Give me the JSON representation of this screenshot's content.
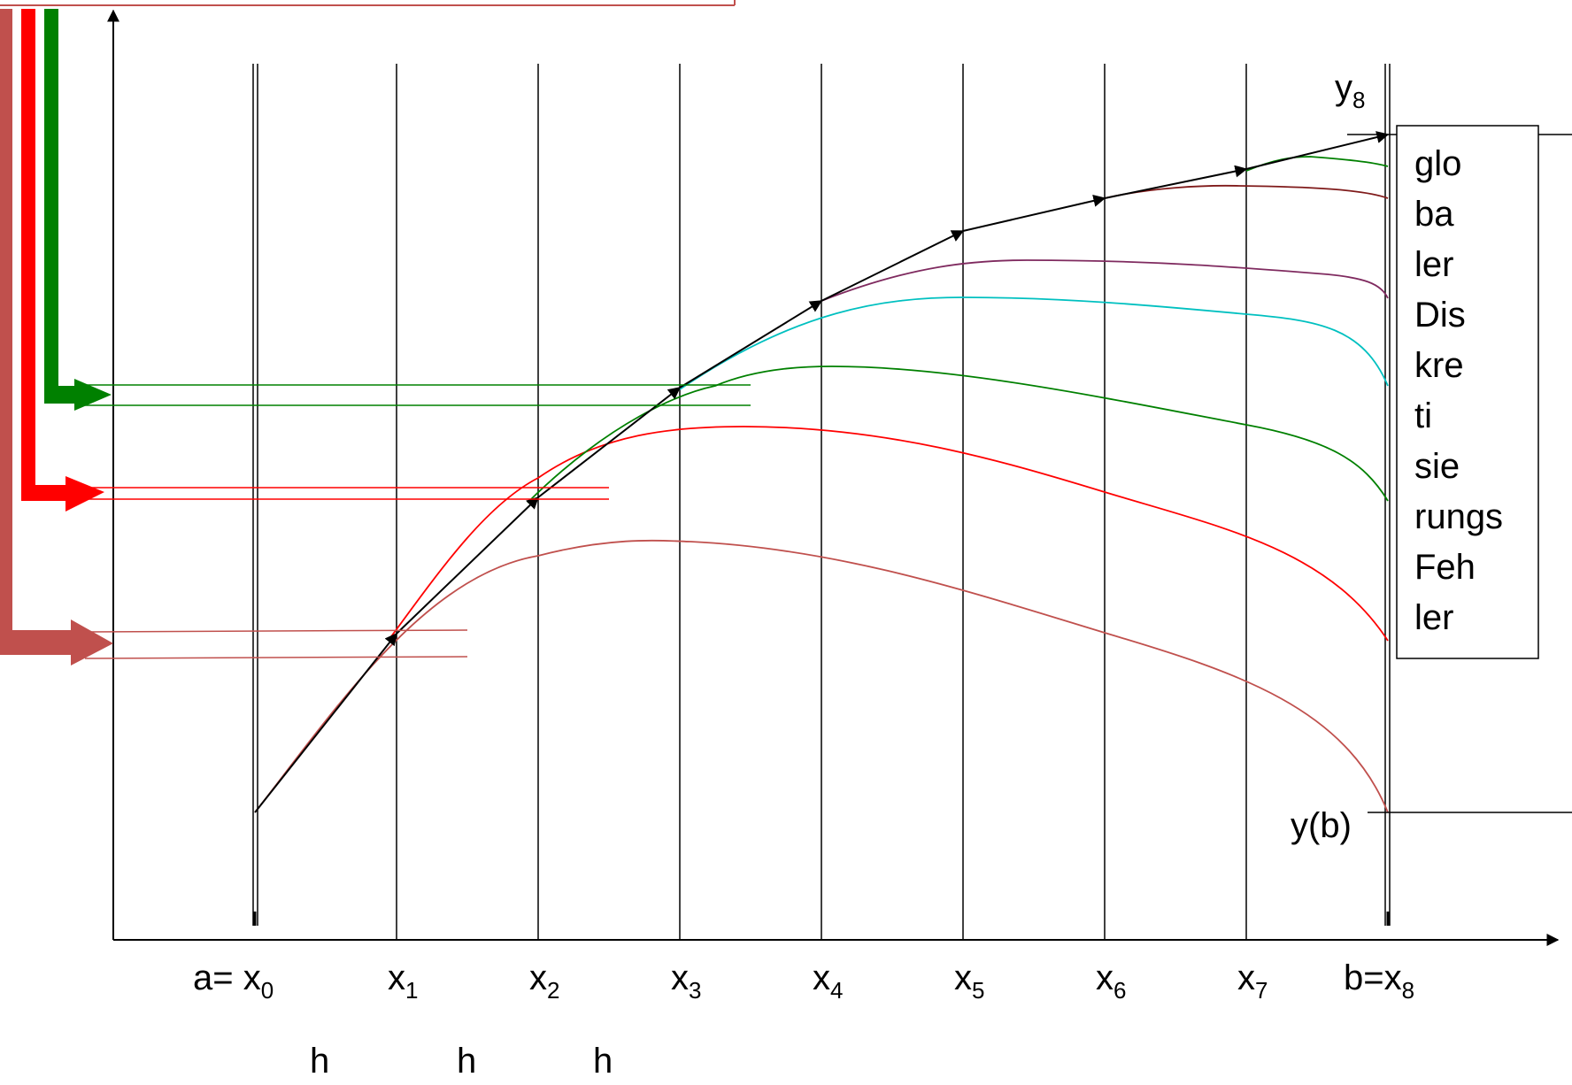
{
  "diagram": {
    "x_labels": [
      {
        "prefix": "a= ",
        "base": "x",
        "sub": "0"
      },
      {
        "prefix": "",
        "base": "x",
        "sub": "1"
      },
      {
        "prefix": "",
        "base": "x",
        "sub": "2"
      },
      {
        "prefix": "",
        "base": "x",
        "sub": "3"
      },
      {
        "prefix": "",
        "base": "x",
        "sub": "4"
      },
      {
        "prefix": "",
        "base": "x",
        "sub": "5"
      },
      {
        "prefix": "",
        "base": "x",
        "sub": "6"
      },
      {
        "prefix": "",
        "base": "x",
        "sub": "7"
      },
      {
        "prefix": "b=",
        "base": "x",
        "sub": "8"
      }
    ],
    "h_labels": [
      "h",
      "h",
      "h"
    ],
    "y8_label": {
      "base": "y",
      "sub": "8"
    },
    "yb_label": "y(b)",
    "box_words": [
      "glo",
      "ba",
      "ler",
      "Dis",
      "kre",
      "ti",
      "sie",
      "rungs",
      "Feh",
      "ler"
    ],
    "colors": {
      "euler_path": "#000000",
      "curve_from_x0": "#c0504d",
      "curve_from_x1": "#ff0000",
      "curve_from_x2": "#008000",
      "curve_from_x3": "#00c0c0",
      "curve_from_x4": "#7f2a5f",
      "curve_from_x5": "#7f1a1a",
      "curve_from_x6": "#008000",
      "arrow_bottom": "#c0504d",
      "arrow_middle": "#ff0000",
      "arrow_top": "#008000"
    }
  }
}
